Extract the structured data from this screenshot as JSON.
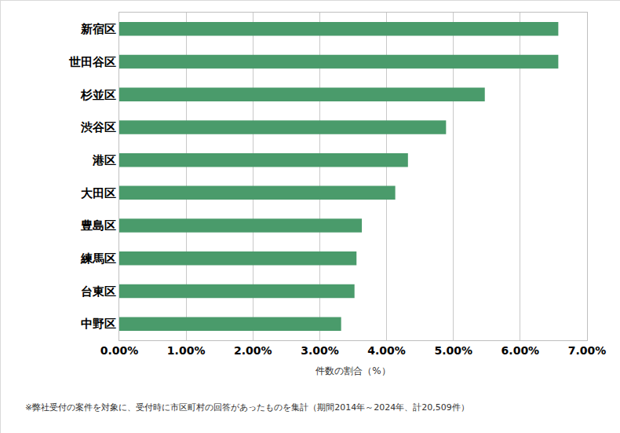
{
  "chart_data": {
    "type": "bar",
    "orientation": "horizontal",
    "x_label": "件数の割合（%）",
    "annotations": [
      "※弊社受付の案件を対象に、受付時に市区町村の回答があったものを集計（期間2014年～2024年、計20,509件）"
    ],
    "categories": [
      "新宿区",
      "世田谷区",
      "杉並区",
      "渋谷区",
      "港区",
      "大田区",
      "豊島区",
      "練馬区",
      "台東区",
      "中野区"
    ],
    "values": [
      6.57,
      6.57,
      5.47,
      4.89,
      4.32,
      4.13,
      3.63,
      3.55,
      3.52,
      3.32
    ],
    "color": "#4a9b6b",
    "xlim": [
      0,
      7
    ],
    "xticks": [
      {
        "value": 0,
        "label": "0.00%"
      },
      {
        "value": 1,
        "label": "1.00%"
      },
      {
        "value": 2,
        "label": "2.00%"
      },
      {
        "value": 3,
        "label": "3.00%"
      },
      {
        "value": 4,
        "label": "4.00%"
      },
      {
        "value": 5,
        "label": "5.00%"
      },
      {
        "value": 6,
        "label": "6.00%"
      },
      {
        "value": 7,
        "label": "7.00%"
      }
    ],
    "grid": true
  }
}
